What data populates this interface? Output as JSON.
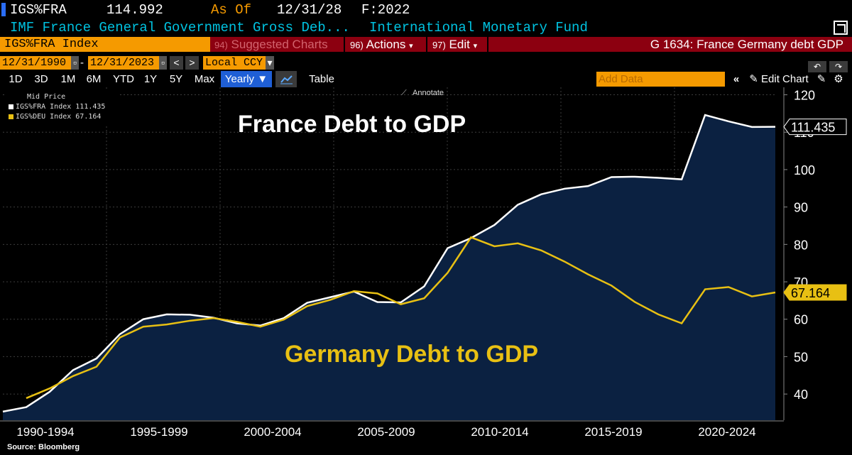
{
  "header": {
    "ticker": "IGS%FRA",
    "price": "114.992",
    "as_of_label": "As Of",
    "as_of_date": "12/31/28",
    "freq": "F:2022",
    "description": "IMF France General Government Gross Deb...",
    "source_name": "International Monetary Fund"
  },
  "toolbar": {
    "index": "IGS%FRA Index",
    "suggested_num": "94)",
    "suggested_label": "Suggested Charts",
    "actions_num": "96)",
    "actions_label": "Actions",
    "edit_num": "97)",
    "edit_label": "Edit",
    "chart_title": "G 1634: France Germany debt GDP"
  },
  "range": {
    "start": "12/31/1990",
    "end": "12/31/2023",
    "currency": "Local CCY",
    "prev": "<",
    "next": ">"
  },
  "periods": [
    "1D",
    "3D",
    "1M",
    "6M",
    "YTD",
    "1Y",
    "5Y",
    "Max"
  ],
  "view": {
    "frequency": "Yearly ▼",
    "table": "Table",
    "add_data_placeholder": "Add Data",
    "edit_chart": "Edit Chart",
    "annotate": "Annotate"
  },
  "legend": {
    "header": "Mid Price",
    "items": [
      "IGS%FRA Index 111.435",
      "IGS%DEU Index 67.164"
    ]
  },
  "footer": {
    "source": "Source: Bloomberg"
  },
  "colors": {
    "france": "#ffffff",
    "germany": "#e8c013",
    "area": "#0b2141",
    "orange": "#f59a00",
    "red_bar": "#8c0010"
  },
  "chart_data": {
    "type": "line",
    "x": [
      1990,
      1991,
      1992,
      1993,
      1994,
      1995,
      1996,
      1997,
      1998,
      1999,
      2000,
      2001,
      2002,
      2003,
      2004,
      2005,
      2006,
      2007,
      2008,
      2009,
      2010,
      2011,
      2012,
      2013,
      2014,
      2015,
      2016,
      2017,
      2018,
      2019,
      2020,
      2021,
      2022,
      2023
    ],
    "series": [
      {
        "name": "IGS%FRA Index",
        "color": "#ffffff",
        "filled": true,
        "values": [
          35.3,
          36.5,
          40.6,
          46.4,
          49.5,
          56.0,
          60.0,
          61.3,
          61.2,
          60.4,
          58.9,
          58.3,
          60.3,
          64.4,
          65.9,
          67.4,
          64.6,
          64.5,
          68.8,
          79.0,
          81.7,
          85.2,
          90.6,
          93.4,
          94.9,
          95.6,
          98.0,
          98.1,
          97.8,
          97.4,
          114.6,
          112.9,
          111.4,
          111.435
        ],
        "annotation": "France Debt to GDP",
        "last_label": "111.435"
      },
      {
        "name": "IGS%DEU Index",
        "color": "#e8c013",
        "filled": false,
        "values": [
          null,
          38.9,
          41.5,
          44.8,
          47.3,
          55.1,
          58.0,
          58.6,
          59.6,
          60.3,
          59.3,
          58.0,
          59.9,
          63.5,
          65.2,
          67.5,
          66.9,
          64.0,
          65.6,
          72.4,
          81.9,
          79.5,
          80.3,
          78.4,
          75.4,
          72.0,
          69.0,
          64.6,
          61.3,
          58.9,
          68.0,
          68.6,
          66.1,
          67.164
        ],
        "annotation": "Germany Debt to GDP",
        "last_label": "67.164"
      }
    ],
    "x_categories": [
      "1990-1994",
      "1995-1999",
      "2000-2004",
      "2005-2009",
      "2010-2014",
      "2015-2019",
      "2020-2024"
    ],
    "y_ticks": [
      40,
      50,
      60,
      70,
      80,
      90,
      100,
      110,
      120
    ],
    "ylim": [
      33,
      122
    ],
    "grid": true,
    "legend_position": "top-left"
  }
}
